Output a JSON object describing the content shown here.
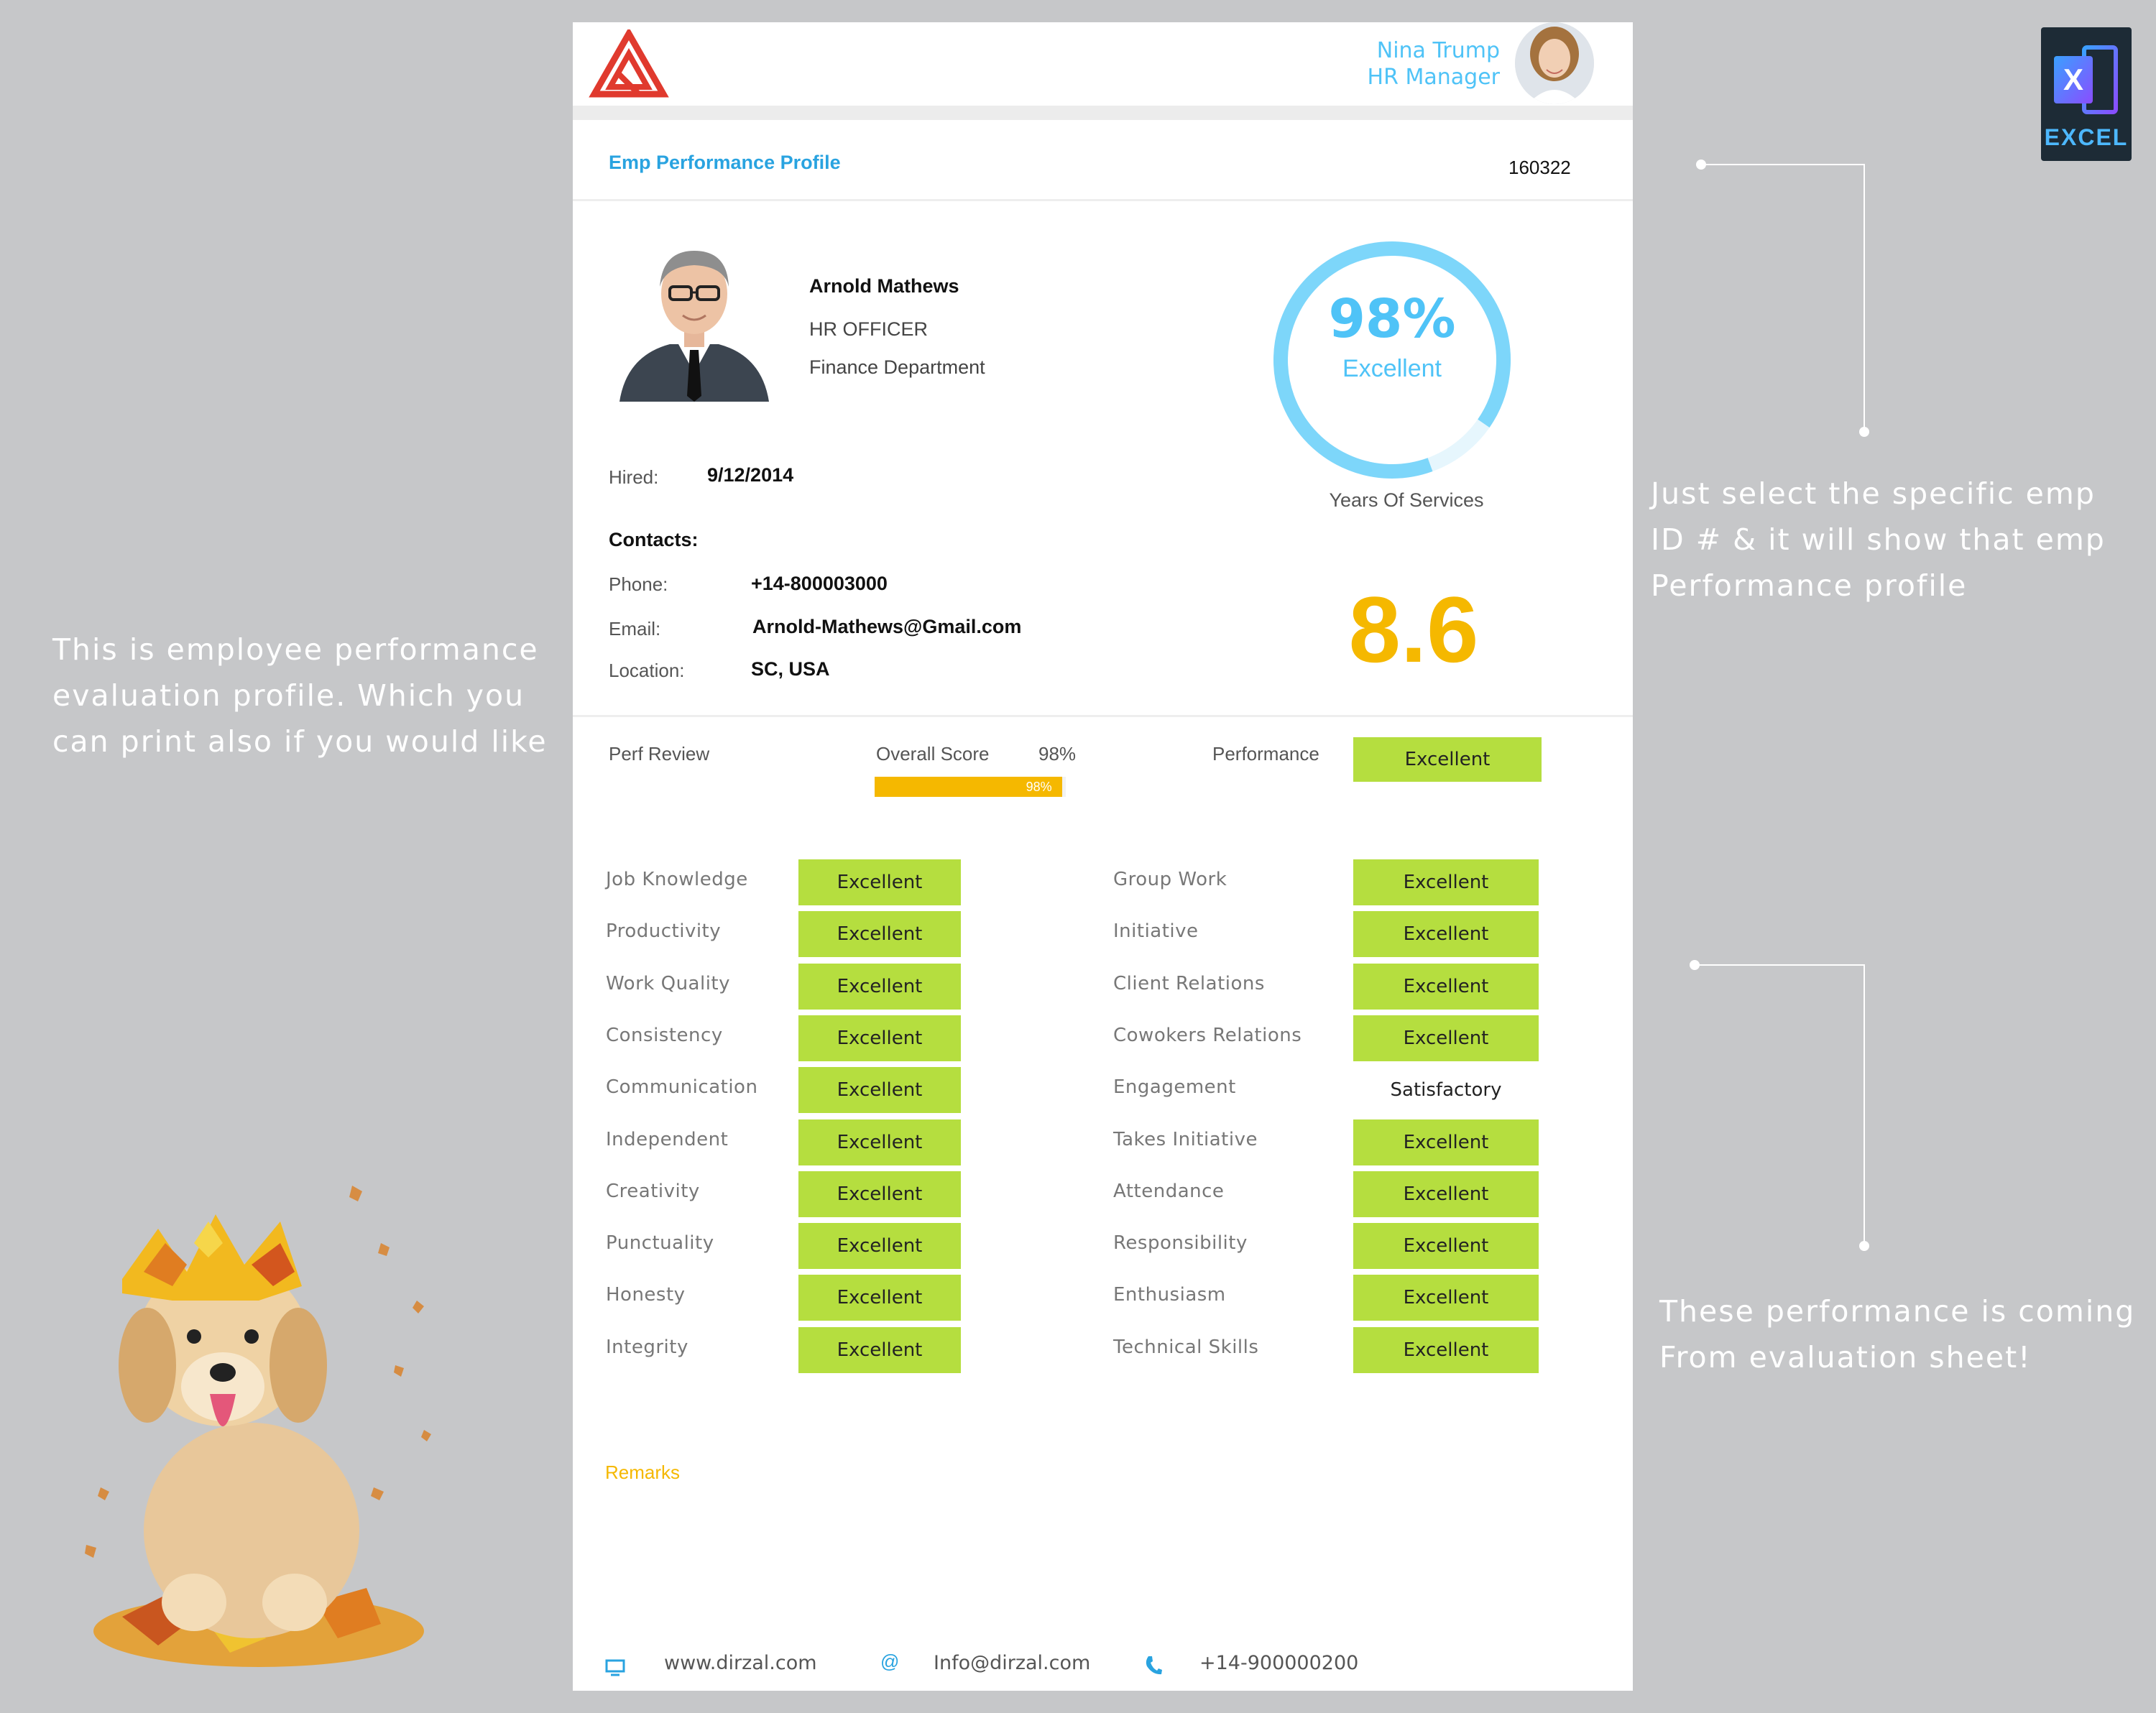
{
  "notes": {
    "left": [
      "This is employee performance",
      "evaluation profile. Which you",
      "can print also if you would like"
    ],
    "right_top": [
      "Just select the specific emp",
      "ID # & it will show that emp",
      "Performance profile"
    ],
    "right_bottom": [
      "These performance is coming",
      "From evaluation sheet!"
    ]
  },
  "excel_badge": {
    "letter": "X",
    "label": "EXCEL"
  },
  "manager": {
    "name": "Nina Trump",
    "title": "HR Manager"
  },
  "profile": {
    "title": "Emp Performance Profile",
    "emp_id": "160322",
    "name": "Arnold Mathews",
    "role": "HR OFFICER",
    "department": "Finance Department",
    "hired_label": "Hired:",
    "hired": "9/12/2014",
    "contacts_label": "Contacts:",
    "phone_label": "Phone:",
    "phone": "+14-800003000",
    "email_label": "Email:",
    "email": "Arnold-Mathews@Gmail.com",
    "location_label": "Location:",
    "location": "SC, USA"
  },
  "gauge": {
    "percent_text": "98%",
    "value": 0.98,
    "label": "Excellent",
    "color": "#4fc3f7"
  },
  "years_of_service": {
    "label": "Years Of Services",
    "value": "8.6"
  },
  "review": {
    "perf_review_label": "Perf Review",
    "overall_label": "Overall Score",
    "overall_value": "98%",
    "overall_fraction": 0.98,
    "bar_label": "98%",
    "performance_label": "Performance",
    "performance_value": "Excellent"
  },
  "criteria_left": [
    {
      "name": "Job Knowledge",
      "rating": "Excellent"
    },
    {
      "name": "Productivity",
      "rating": "Excellent"
    },
    {
      "name": "Work Quality",
      "rating": "Excellent"
    },
    {
      "name": "Consistency",
      "rating": "Excellent"
    },
    {
      "name": "Communication",
      "rating": "Excellent"
    },
    {
      "name": "Independent",
      "rating": "Excellent"
    },
    {
      "name": "Creativity",
      "rating": "Excellent"
    },
    {
      "name": "Punctuality",
      "rating": "Excellent"
    },
    {
      "name": "Honesty",
      "rating": "Excellent"
    },
    {
      "name": "Integrity",
      "rating": "Excellent"
    }
  ],
  "criteria_right": [
    {
      "name": "Group Work",
      "rating": "Excellent"
    },
    {
      "name": "Initiative",
      "rating": "Excellent"
    },
    {
      "name": "Client Relations",
      "rating": "Excellent"
    },
    {
      "name": "Cowokers Relations",
      "rating": "Excellent"
    },
    {
      "name": "Engagement",
      "rating": "Satisfactory"
    },
    {
      "name": "Takes Initiative",
      "rating": "Excellent"
    },
    {
      "name": "Attendance",
      "rating": "Excellent"
    },
    {
      "name": "Responsibility",
      "rating": "Excellent"
    },
    {
      "name": "Enthusiasm",
      "rating": "Excellent"
    },
    {
      "name": "Technical Skills",
      "rating": "Excellent"
    }
  ],
  "remarks_label": "Remarks",
  "footer": {
    "website": "www.dirzal.com",
    "email": "Info@dirzal.com",
    "phone": "+14-900000200",
    "website_icon": "monitor-icon",
    "email_icon": "at-icon",
    "phone_icon": "phone-icon"
  },
  "colors": {
    "green": "#b5de3f",
    "blue": "#29a3e0",
    "gold": "#f5b800",
    "logo_red": "#e03a2e"
  }
}
